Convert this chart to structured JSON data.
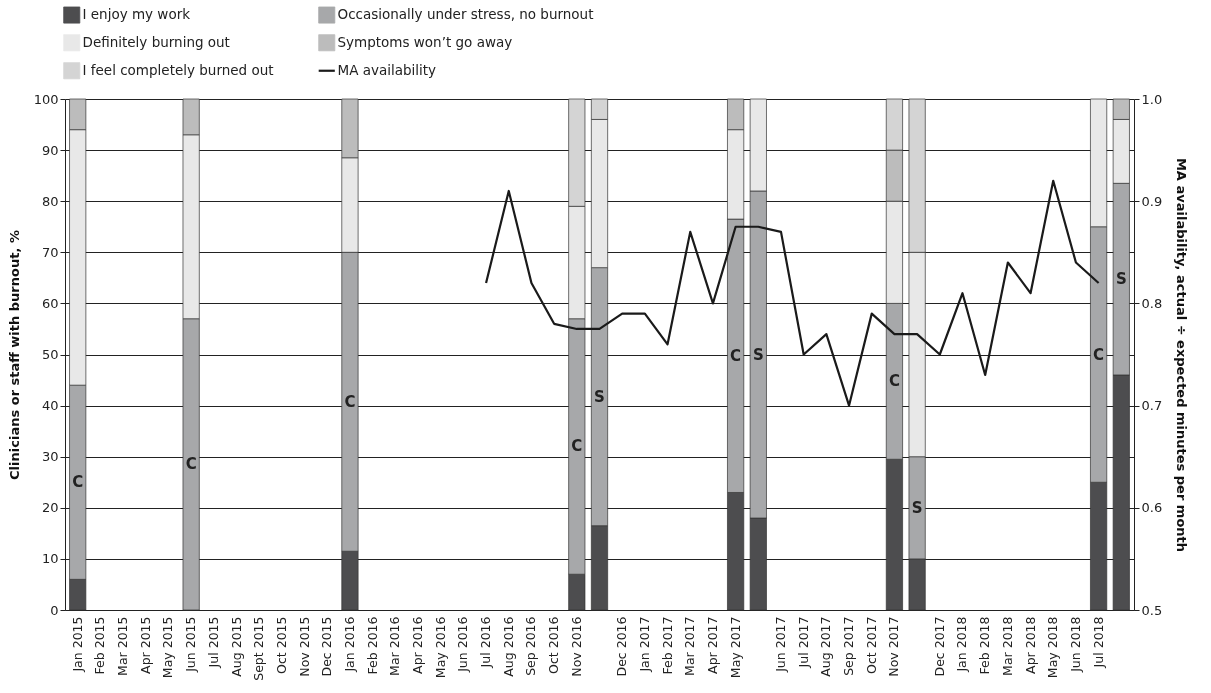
{
  "chart_data": {
    "type": "bar",
    "stacked": true,
    "ylabel": "Clinicians or staff with burnout, %",
    "y2label": "MA availability, actual ÷ expected minutes per month",
    "categories": [
      "Jan 2015",
      "Feb 2015",
      "Mar 2015",
      "Apr 2015",
      "May 2015",
      "Jun 2015",
      "Jul 2015",
      "Aug 2015",
      "Sept 2015",
      "Oct 2015",
      "Nov 2015",
      "Dec 2015",
      "Jan 2016",
      "Feb 2016",
      "Mar 2016",
      "Apr 2016",
      "May 2016",
      "Jun 2016",
      "Jul 2016",
      "Aug 2016",
      "Sep 2016",
      "Oct 2016",
      "Nov 2016",
      null,
      "Dec 2016",
      "Jan 2017",
      "Feb 2017",
      "Mar 2017",
      "Apr 2017",
      "May 2017",
      null,
      "Jun 2017",
      "Jul 2017",
      "Aug 2017",
      "Sep 2017",
      "Oct 2017",
      "Nov 2017",
      null,
      "Dec 2017",
      "Jan 2018",
      "Feb 2018",
      "Mar 2018",
      "Apr 2018",
      "May 2018",
      "Jun 2018",
      "Jul 2018",
      null
    ],
    "series": [
      {
        "name": "I enjoy my work",
        "color": "#4d4d4f",
        "values": [
          6,
          null,
          null,
          null,
          null,
          null,
          null,
          null,
          null,
          null,
          null,
          null,
          11.5,
          null,
          null,
          null,
          null,
          null,
          null,
          null,
          null,
          null,
          7,
          16.5,
          null,
          null,
          null,
          null,
          null,
          23,
          18,
          null,
          null,
          null,
          null,
          null,
          29.5,
          10,
          null,
          null,
          null,
          null,
          null,
          null,
          null,
          25,
          46
        ]
      },
      {
        "name": "Occasionally under stress, no burnout",
        "color": "#a7a8aa",
        "values": [
          38,
          null,
          null,
          null,
          null,
          57,
          null,
          null,
          null,
          null,
          null,
          null,
          58.5,
          null,
          null,
          null,
          null,
          null,
          null,
          null,
          null,
          null,
          50,
          50.5,
          null,
          null,
          null,
          null,
          null,
          53.5,
          64,
          null,
          null,
          null,
          null,
          null,
          30.5,
          20,
          null,
          null,
          null,
          null,
          null,
          null,
          null,
          50,
          37.5
        ],
        "value_labels": [
          "C",
          null,
          null,
          null,
          null,
          "C",
          null,
          null,
          null,
          null,
          null,
          null,
          "C",
          null,
          null,
          null,
          null,
          null,
          null,
          null,
          null,
          null,
          "C",
          "S",
          null,
          null,
          null,
          null,
          null,
          "C",
          "S",
          null,
          null,
          null,
          null,
          null,
          "C",
          "S",
          null,
          null,
          null,
          null,
          null,
          null,
          null,
          "C",
          "S"
        ]
      },
      {
        "name": "Definitely burning out",
        "color": "#e8e8e8",
        "values": [
          50,
          null,
          null,
          null,
          null,
          36,
          null,
          null,
          null,
          null,
          null,
          null,
          18.5,
          null,
          null,
          null,
          null,
          null,
          null,
          null,
          null,
          null,
          22,
          29,
          null,
          null,
          null,
          null,
          null,
          17.5,
          18,
          null,
          null,
          null,
          null,
          null,
          20,
          40,
          null,
          null,
          null,
          null,
          null,
          null,
          null,
          25,
          12.5
        ]
      },
      {
        "name": "Symptoms won’t go away",
        "color": "#bcbcbc",
        "values": [
          6,
          null,
          null,
          null,
          null,
          7,
          null,
          null,
          null,
          null,
          null,
          null,
          11.5,
          null,
          null,
          null,
          null,
          null,
          null,
          null,
          null,
          null,
          null,
          null,
          null,
          null,
          null,
          null,
          null,
          6,
          null,
          null,
          null,
          null,
          null,
          null,
          10,
          null,
          null,
          null,
          null,
          null,
          null,
          null,
          null,
          null,
          4
        ]
      },
      {
        "name": "I feel completely burned out",
        "color": "#d4d4d4",
        "values": [
          null,
          null,
          null,
          null,
          null,
          null,
          null,
          null,
          null,
          null,
          null,
          null,
          null,
          null,
          null,
          null,
          null,
          null,
          null,
          null,
          null,
          null,
          21,
          4,
          null,
          null,
          null,
          null,
          null,
          null,
          null,
          null,
          null,
          null,
          null,
          null,
          10,
          30,
          null,
          null,
          null,
          null,
          null,
          null,
          null,
          null,
          null
        ]
      },
      {
        "name": "MA availability",
        "type": "line",
        "axis": "y2",
        "color": "#1a1a1a",
        "values": [
          null,
          null,
          null,
          null,
          null,
          null,
          null,
          null,
          null,
          null,
          null,
          null,
          null,
          null,
          null,
          null,
          null,
          null,
          0.82,
          0.91,
          0.82,
          0.78,
          0.775,
          0.775,
          0.79,
          0.79,
          0.76,
          0.87,
          0.8,
          0.875,
          0.875,
          0.87,
          0.75,
          0.77,
          0.7,
          0.79,
          0.77,
          0.77,
          0.75,
          0.81,
          0.73,
          0.84,
          0.81,
          0.92,
          0.84,
          0.82,
          null
        ]
      }
    ],
    "ylim": [
      0,
      100
    ],
    "yticks": [
      0,
      10,
      20,
      30,
      40,
      50,
      60,
      70,
      80,
      90,
      100
    ],
    "y2lim": [
      0.5,
      1.0
    ],
    "y2ticks": [
      {
        "value": 0.5,
        "label": "0.5"
      },
      {
        "value": 0.6,
        "label": "0.6"
      },
      {
        "value": 0.7,
        "label": "0.7"
      },
      {
        "value": 0.8,
        "label": "0.8"
      },
      {
        "value": 0.9,
        "label": "0.9"
      },
      {
        "value": 1.0,
        "label": "1.0"
      }
    ],
    "grid": "y",
    "legend": "top",
    "line_style": "solid",
    "marker": "none"
  }
}
